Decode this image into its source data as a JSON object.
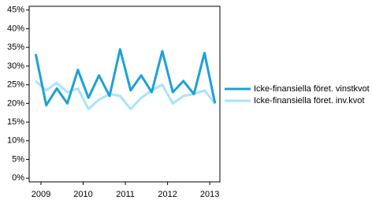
{
  "chart_data": {
    "type": "line",
    "x": [
      2008.875,
      2009.125,
      2009.375,
      2009.625,
      2009.875,
      2010.125,
      2010.375,
      2010.625,
      2010.875,
      2011.125,
      2011.375,
      2011.625,
      2011.875,
      2012.125,
      2012.375,
      2012.625,
      2012.875,
      2013.125
    ],
    "series": [
      {
        "name": "Icke-finansiella föret. vinstkvot",
        "color": "#1ea0d8",
        "values": [
          33.2,
          19.5,
          24,
          20,
          29,
          21.5,
          27.5,
          22,
          34.5,
          23.5,
          27.5,
          23,
          34,
          23,
          26,
          22.5,
          33.5,
          20
        ]
      },
      {
        "name": "Icke-finansiella föret. inv.kvot",
        "color": "#a8e4fb",
        "values": [
          26,
          23.5,
          25.5,
          23,
          24,
          18.5,
          21,
          22.5,
          22,
          18.5,
          21.5,
          23.5,
          25,
          20,
          22,
          22.5,
          23.5,
          20
        ]
      }
    ],
    "xlim": [
      2008.72,
      2013.24
    ],
    "xticks": [
      2009,
      2010,
      2011,
      2012,
      2013
    ],
    "ylim": [
      -1,
      46
    ],
    "yticks": [
      {
        "value": 0,
        "label": "0%"
      },
      {
        "value": 5,
        "label": "5%"
      },
      {
        "value": 10,
        "label": "10%"
      },
      {
        "value": 15,
        "label": "15%"
      },
      {
        "value": 20,
        "label": "20%"
      },
      {
        "value": 25,
        "label": "25%"
      },
      {
        "value": 30,
        "label": "30%"
      },
      {
        "value": 35,
        "label": "35%"
      },
      {
        "value": 40,
        "label": "40%"
      },
      {
        "value": 45,
        "label": "45%"
      }
    ],
    "legend": "right"
  }
}
